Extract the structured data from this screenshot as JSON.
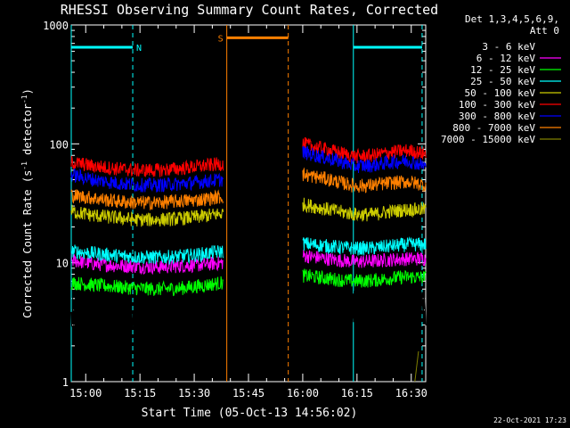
{
  "chart_data": {
    "type": "line",
    "title": "RHESSI Observing Summary Count Rates, Corrected",
    "xlabel": "Start Time (05-Oct-13 14:56:02)",
    "ylabel_main": "Corrected Count Rate (s",
    "ylabel_sup1": "-1",
    "ylabel_mid": " detector",
    "ylabel_sup2": "-1",
    "ylabel_end": ")",
    "y_scale": "log",
    "ylim": [
      1,
      1000
    ],
    "xlim": [
      "14:56",
      "16:34"
    ],
    "y_ticks": [
      {
        "value": 1,
        "label": "1"
      },
      {
        "value": 10,
        "label": "10"
      },
      {
        "value": 100,
        "label": "100"
      },
      {
        "value": 1000,
        "label": "1000"
      }
    ],
    "x_ticks": [
      {
        "value": "15:00",
        "label": "15:00"
      },
      {
        "value": "15:15",
        "label": "15:15"
      },
      {
        "value": "15:30",
        "label": "15:30"
      },
      {
        "value": "15:45",
        "label": "15:45"
      },
      {
        "value": "16:00",
        "label": "16:00"
      },
      {
        "value": "16:15",
        "label": "16:15"
      },
      {
        "value": "16:30",
        "label": "16:30"
      }
    ],
    "legend_header": [
      "Det 1,3,4,5,6,9,",
      "Att 0"
    ],
    "legend_position": "right",
    "series": [
      {
        "name": "3 - 6 keV",
        "color": "#000000",
        "segments": [
          {
            "start": "14:56",
            "end": "15:38",
            "values": [
              3.4,
              3.3,
              3.3,
              3.3,
              3.3,
              3.3,
              3.3,
              3.4
            ]
          },
          {
            "start": "16:00",
            "end": "16:34",
            "values": [
              3.8,
              3.9,
              3.9,
              4.0,
              4.1,
              4.1,
              4.0,
              3.9
            ]
          }
        ]
      },
      {
        "name": "6 - 12 keV",
        "color": "#ff00ff",
        "segments": [
          {
            "start": "14:56",
            "end": "15:38",
            "values": [
              10.5,
              9.8,
              9.5,
              9.3,
              9.2,
              9.4,
              9.6,
              10.0
            ]
          },
          {
            "start": "16:00",
            "end": "16:34",
            "values": [
              11.5,
              11.0,
              10.5,
              10.2,
              10.3,
              10.6,
              10.8,
              10.8
            ]
          }
        ]
      },
      {
        "name": "12 - 25 keV",
        "color": "#00ff00",
        "segments": [
          {
            "start": "14:56",
            "end": "15:38",
            "values": [
              6.8,
              6.5,
              6.3,
              6.1,
              6.0,
              6.1,
              6.4,
              6.8
            ]
          },
          {
            "start": "16:00",
            "end": "16:34",
            "values": [
              7.8,
              7.5,
              7.2,
              7.0,
              7.1,
              7.4,
              7.6,
              7.5
            ]
          }
        ]
      },
      {
        "name": "25 - 50 keV",
        "color": "#00ffff",
        "segments": [
          {
            "start": "14:56",
            "end": "15:38",
            "values": [
              12.5,
              12.0,
              11.5,
              11.2,
              11.1,
              11.3,
              11.8,
              12.5
            ]
          },
          {
            "start": "16:00",
            "end": "16:34",
            "values": [
              14.5,
              14.0,
              13.5,
              13.2,
              13.3,
              13.8,
              14.2,
              14.3
            ]
          }
        ]
      },
      {
        "name": "50 - 100 keV",
        "color": "#cccc00",
        "segments": [
          {
            "start": "14:56",
            "end": "15:38",
            "values": [
              27,
              25,
              24,
              23,
              23,
              23.5,
              24.5,
              26
            ]
          },
          {
            "start": "16:00",
            "end": "16:34",
            "values": [
              31,
              29,
              27,
              25.5,
              25.5,
              27,
              28,
              28
            ]
          }
        ]
      },
      {
        "name": "100 - 300 keV",
        "color": "#ff0000",
        "segments": [
          {
            "start": "14:56",
            "end": "15:38",
            "values": [
              70,
              65,
              62,
              60,
              60,
              62,
              65,
              68
            ]
          },
          {
            "start": "16:00",
            "end": "16:34",
            "values": [
              100,
              92,
              85,
              78,
              80,
              85,
              88,
              82
            ]
          }
        ]
      },
      {
        "name": "300 - 800 keV",
        "color": "#0000ff",
        "segments": [
          {
            "start": "14:56",
            "end": "15:38",
            "values": [
              55,
              50,
              47,
              45,
              45,
              46,
              48,
              50
            ]
          },
          {
            "start": "16:00",
            "end": "16:34",
            "values": [
              85,
              78,
              72,
              65,
              66,
              70,
              72,
              65
            ]
          }
        ]
      },
      {
        "name": "800 - 7000 keV",
        "color": "#ff8000",
        "segments": [
          {
            "start": "14:56",
            "end": "15:38",
            "values": [
              37,
              35,
              33,
              32,
              32,
              33,
              34,
              36
            ]
          },
          {
            "start": "16:00",
            "end": "16:34",
            "values": [
              55,
              52,
              48,
              44,
              45,
              47,
              48,
              45
            ]
          }
        ]
      },
      {
        "name": "7000 - 15000 keV",
        "color": "#808000",
        "segments": [
          {
            "start": "16:31",
            "end": "16:32",
            "values": [
              1.0,
              1.8
            ]
          }
        ]
      }
    ],
    "flag_lines": [
      {
        "label": "N",
        "color": "#00ffff",
        "left": "14:56",
        "right": "15:13",
        "level": 650
      },
      {
        "label": "",
        "color": "#00ffff",
        "left": "16:14",
        "right": "16:33",
        "level": 650
      },
      {
        "label": "S",
        "color": "#ff8000",
        "left": "15:39",
        "right": "15:56",
        "level": 780
      }
    ]
  },
  "footer": {
    "timestamp": "22-Oct-2021 17:23"
  }
}
